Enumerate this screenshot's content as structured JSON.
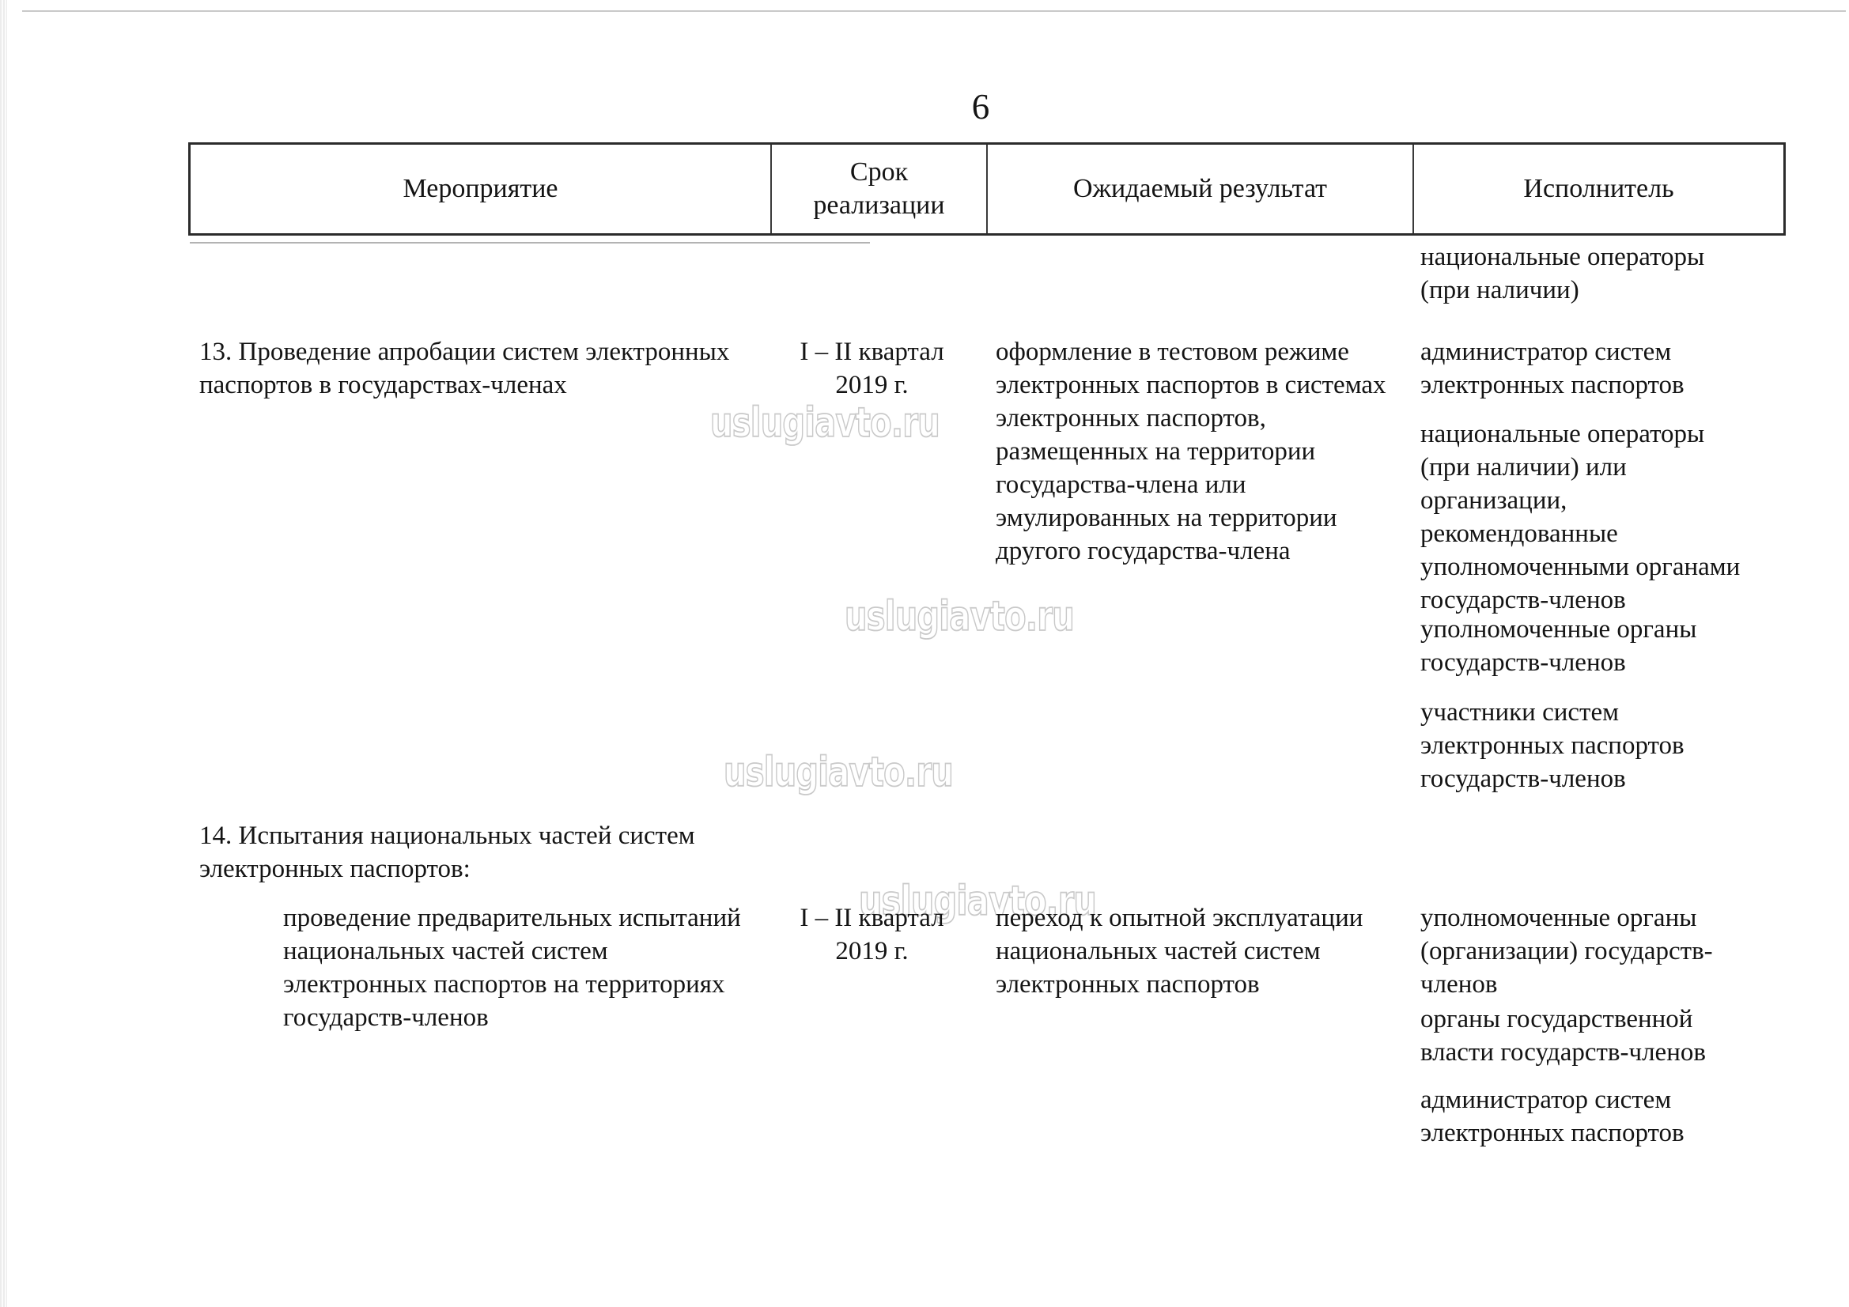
{
  "page": {
    "number": "6",
    "watermark": "uslugiavto.ru"
  },
  "table": {
    "headers": [
      "Мероприятие",
      "Срок\nреализации",
      "Ожидаемый результат",
      "Исполнитель"
    ],
    "carryover": {
      "executor": "национальные операторы\n(при наличии)"
    },
    "rows": [
      {
        "activity": "13. Проведение апробации систем электронных\nпаспортов в государствах-членах",
        "term": "I – II квартал\n2019 г.",
        "result": "оформление в тестовом режиме\nэлектронных паспортов в системах\nэлектронных паспортов,\nразмещенных на территории\nгосударства-члена или\nэмулированных на территории\nдругого государства-члена",
        "executors": [
          "администратор систем\nэлектронных паспортов",
          "национальные операторы\n(при наличии) или\nорганизации,\nрекомендованные\nуполномоченными органами\nгосударств-членов",
          "уполномоченные органы\nгосударств-членов",
          "участники систем\nэлектронных паспортов\nгосударств-членов"
        ]
      },
      {
        "activity": "14. Испытания национальных частей систем\nэлектронных паспортов:",
        "term": "",
        "result": "",
        "executors": []
      },
      {
        "activity": "проведение предварительных испытаний\nнациональных частей систем\nэлектронных паспортов на территориях\nгосударств-членов",
        "term": "I – II квартал\n2019 г.",
        "result": "переход к опытной эксплуатации\nнациональных частей систем\nэлектронных паспортов",
        "executors": [
          "уполномоченные органы\n(организации) государств-\nчленов",
          "органы государственной\nвласти государств-членов",
          "администратор систем\nэлектронных паспортов"
        ]
      }
    ]
  }
}
